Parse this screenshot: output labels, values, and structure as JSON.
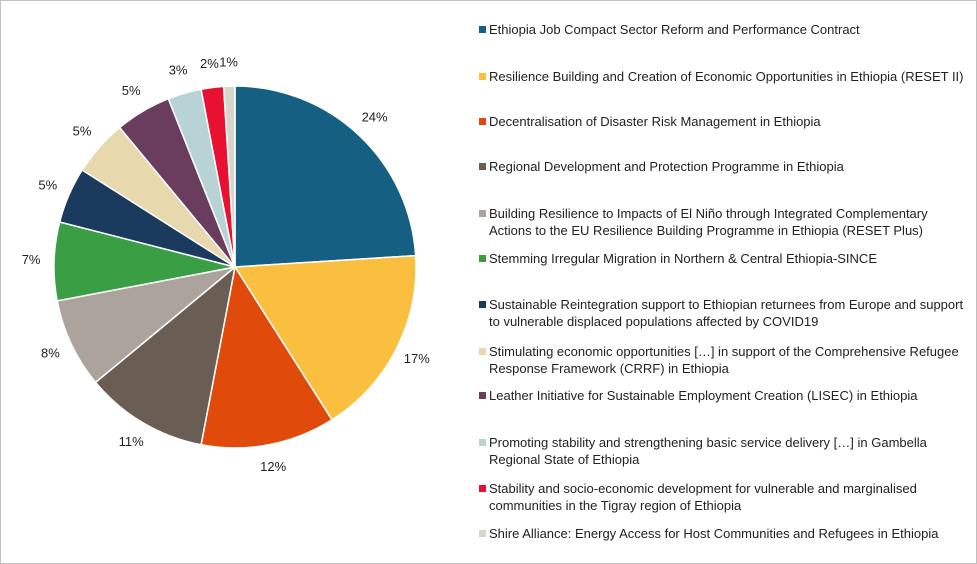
{
  "chart_data": {
    "type": "pie",
    "title": "",
    "legend_position": "right",
    "slices": [
      {
        "label": "Ethiopia Job Compact Sector Reform and Performance Contract",
        "value": 24,
        "value_label": "24%",
        "color": "#156082"
      },
      {
        "label": "Resilience Building and Creation of Economic Opportunities in Ethiopia (RESET II)",
        "value": 17,
        "value_label": "17%",
        "color": "#fbbf40"
      },
      {
        "label": "Decentralisation of Disaster Risk Management in Ethiopia",
        "value": 12,
        "value_label": "12%",
        "color": "#e04a0b"
      },
      {
        "label": "Regional Development and Protection Programme in Ethiopia",
        "value": 11,
        "value_label": "11%",
        "color": "#6a5e54"
      },
      {
        "label": "Building Resilience to Impacts of El Niño through Integrated Complementary Actions to the EU Resilience Building Programme in Ethiopia (RESET Plus)",
        "value": 8,
        "value_label": "8%",
        "color": "#aca49c"
      },
      {
        "label": "Stemming Irregular Migration in Northern & Central Ethiopia-SINCE",
        "value": 7,
        "value_label": "7%",
        "color": "#3a9e45"
      },
      {
        "label": "Sustainable Reintegration support to Ethiopian returnees from Europe and support to vulnerable displaced populations affected by COVID19",
        "value": 5,
        "value_label": "5%",
        "color": "#1a3a5e"
      },
      {
        "label": "Stimulating economic opportunities […] in support of the Comprehensive Refugee Response Framework (CRRF) in Ethiopia",
        "value": 5,
        "value_label": "5%",
        "color": "#e8d8ae"
      },
      {
        "label": "Leather Initiative for Sustainable Employment Creation (LISEC) in Ethiopia",
        "value": 5,
        "value_label": "5%",
        "color": "#6a3d5f"
      },
      {
        "label": "Promoting stability and strengthening basic service delivery […] in Gambella Regional State of Ethiopia",
        "value": 3,
        "value_label": "3%",
        "color": "#b7d3d5"
      },
      {
        "label": "Stability and socio-economic development for vulnerable and marginalised communities in the Tigray region of Ethiopia",
        "value": 2,
        "value_label": "2%",
        "color": "#e8112f"
      },
      {
        "label": "Shire Alliance: Energy Access for Host Communities and Refugees in Ethiopia",
        "value": 1,
        "value_label": "1%",
        "color": "#d8d6c8"
      }
    ]
  }
}
